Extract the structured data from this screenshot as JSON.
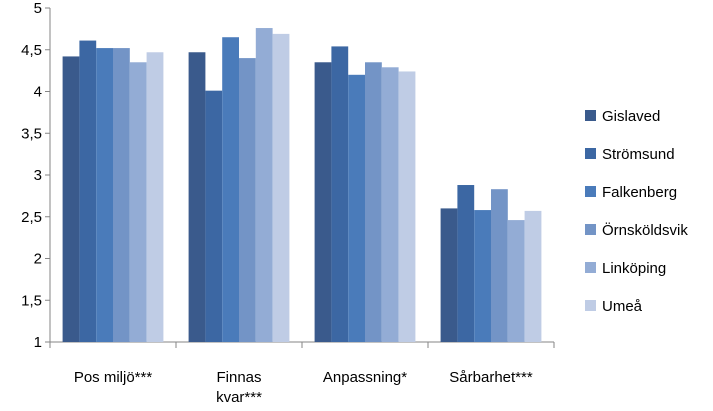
{
  "chart_data": {
    "type": "bar",
    "categories": [
      "Pos miljö***",
      [
        "Finnas",
        "kvar***"
      ],
      "Anpassning*",
      "Sårbarhet***"
    ],
    "ylim": [
      1,
      5
    ],
    "yticks": [
      "1",
      "1,5",
      "2",
      "2,5",
      "3",
      "3,5",
      "4",
      "4,5",
      "5"
    ],
    "ytick_values": [
      1,
      1.5,
      2,
      2.5,
      3,
      3.5,
      4,
      4.5,
      5
    ],
    "grid": false,
    "legend_position": "right",
    "series": [
      {
        "name": "Gislaved",
        "color": "#3a5a8c",
        "values": [
          4.42,
          4.47,
          4.35,
          2.6
        ]
      },
      {
        "name": "Strömsund",
        "color": "#3c67a3",
        "values": [
          4.61,
          4.01,
          4.54,
          2.88
        ]
      },
      {
        "name": "Falkenberg",
        "color": "#4a7bba",
        "values": [
          4.52,
          4.65,
          4.2,
          2.58
        ]
      },
      {
        "name": "Örnsköldsvik",
        "color": "#7394c6",
        "values": [
          4.52,
          4.4,
          4.35,
          2.83
        ]
      },
      {
        "name": "Linköping",
        "color": "#93acd5",
        "values": [
          4.35,
          4.76,
          4.29,
          2.46
        ]
      },
      {
        "name": "Umeå",
        "color": "#bfcce5",
        "values": [
          4.47,
          4.69,
          4.24,
          2.57
        ]
      }
    ]
  }
}
